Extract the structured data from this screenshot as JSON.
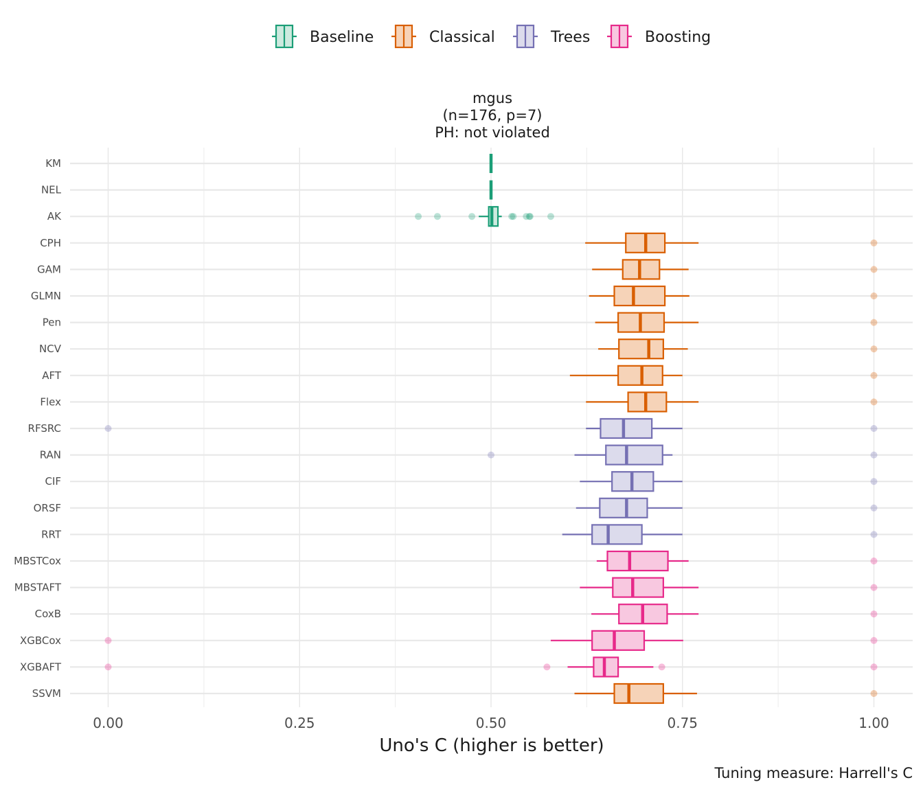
{
  "chart_data": {
    "type": "boxplot",
    "title_lines": [
      "mgus",
      "(n=176, p=7)",
      "PH: not violated"
    ],
    "xlabel": "Uno's C (higher is better)",
    "caption": "Tuning measure: Harrell's C",
    "xlim": [
      -0.025,
      1.025
    ],
    "xticks": [
      "0.00",
      "0.25",
      "0.50",
      "0.75",
      "1.00"
    ],
    "xtick_values": [
      0,
      0.25,
      0.5,
      0.75,
      1.0
    ],
    "grid": true,
    "legend_position": "top",
    "groups": [
      {
        "name": "Baseline",
        "color": "#1b9e77",
        "fill": "#cdeadf"
      },
      {
        "name": "Classical",
        "color": "#d95f02",
        "fill": "#f6d3b8"
      },
      {
        "name": "Trees",
        "color": "#7570b3",
        "fill": "#dcdbec"
      },
      {
        "name": "Boosting",
        "color": "#e7298a",
        "fill": "#f8c8e0"
      }
    ],
    "models": [
      {
        "name": "KM",
        "group": "Baseline",
        "q1": 0.5,
        "median": 0.5,
        "q3": 0.5,
        "wlo": 0.5,
        "whi": 0.5,
        "outliers": []
      },
      {
        "name": "NEL",
        "group": "Baseline",
        "q1": 0.5,
        "median": 0.5,
        "q3": 0.5,
        "wlo": 0.5,
        "whi": 0.5,
        "outliers": []
      },
      {
        "name": "AK",
        "group": "Baseline",
        "q1": 0.497,
        "median": 0.501,
        "q3": 0.509,
        "wlo": 0.484,
        "whi": 0.514,
        "outliers": [
          0.405,
          0.43,
          0.475,
          0.527,
          0.529,
          0.546,
          0.55,
          0.551,
          0.578
        ]
      },
      {
        "name": "CPH",
        "group": "Classical",
        "q1": 0.676,
        "median": 0.702,
        "q3": 0.727,
        "wlo": 0.623,
        "whi": 0.771,
        "outliers": [
          1.0
        ]
      },
      {
        "name": "GAM",
        "group": "Classical",
        "q1": 0.672,
        "median": 0.694,
        "q3": 0.72,
        "wlo": 0.632,
        "whi": 0.758,
        "outliers": [
          1.0
        ]
      },
      {
        "name": "GLMN",
        "group": "Classical",
        "q1": 0.661,
        "median": 0.686,
        "q3": 0.727,
        "wlo": 0.628,
        "whi": 0.759,
        "outliers": [
          1.0
        ]
      },
      {
        "name": "Pen",
        "group": "Classical",
        "q1": 0.666,
        "median": 0.695,
        "q3": 0.726,
        "wlo": 0.636,
        "whi": 0.771,
        "outliers": [
          1.0
        ]
      },
      {
        "name": "NCV",
        "group": "Classical",
        "q1": 0.667,
        "median": 0.706,
        "q3": 0.725,
        "wlo": 0.64,
        "whi": 0.757,
        "outliers": [
          1.0
        ]
      },
      {
        "name": "AFT",
        "group": "Classical",
        "q1": 0.666,
        "median": 0.697,
        "q3": 0.724,
        "wlo": 0.603,
        "whi": 0.75,
        "outliers": [
          1.0
        ]
      },
      {
        "name": "Flex",
        "group": "Classical",
        "q1": 0.679,
        "median": 0.702,
        "q3": 0.729,
        "wlo": 0.624,
        "whi": 0.771,
        "outliers": [
          1.0
        ]
      },
      {
        "name": "RFSRC",
        "group": "Trees",
        "q1": 0.643,
        "median": 0.673,
        "q3": 0.71,
        "wlo": 0.624,
        "whi": 0.75,
        "outliers": [
          0.0,
          1.0
        ]
      },
      {
        "name": "RAN",
        "group": "Trees",
        "q1": 0.65,
        "median": 0.677,
        "q3": 0.724,
        "wlo": 0.609,
        "whi": 0.737,
        "outliers": [
          0.5,
          1.0
        ]
      },
      {
        "name": "CIF",
        "group": "Trees",
        "q1": 0.658,
        "median": 0.684,
        "q3": 0.712,
        "wlo": 0.616,
        "whi": 0.75,
        "outliers": [
          1.0
        ]
      },
      {
        "name": "ORSF",
        "group": "Trees",
        "q1": 0.642,
        "median": 0.677,
        "q3": 0.704,
        "wlo": 0.611,
        "whi": 0.75,
        "outliers": [
          1.0
        ]
      },
      {
        "name": "RRT",
        "group": "Trees",
        "q1": 0.632,
        "median": 0.653,
        "q3": 0.697,
        "wlo": 0.593,
        "whi": 0.75,
        "outliers": [
          1.0
        ]
      },
      {
        "name": "MBSTCox",
        "group": "Boosting",
        "q1": 0.652,
        "median": 0.681,
        "q3": 0.731,
        "wlo": 0.638,
        "whi": 0.758,
        "outliers": [
          1.0
        ]
      },
      {
        "name": "MBSTAFT",
        "group": "Boosting",
        "q1": 0.659,
        "median": 0.685,
        "q3": 0.725,
        "wlo": 0.616,
        "whi": 0.771,
        "outliers": [
          1.0
        ]
      },
      {
        "name": "CoxB",
        "group": "Boosting",
        "q1": 0.667,
        "median": 0.698,
        "q3": 0.73,
        "wlo": 0.631,
        "whi": 0.771,
        "outliers": [
          1.0
        ]
      },
      {
        "name": "XGBCox",
        "group": "Boosting",
        "q1": 0.632,
        "median": 0.661,
        "q3": 0.7,
        "wlo": 0.578,
        "whi": 0.751,
        "outliers": [
          0.0,
          1.0
        ]
      },
      {
        "name": "XGBAFT",
        "group": "Boosting",
        "q1": 0.634,
        "median": 0.648,
        "q3": 0.666,
        "wlo": 0.6,
        "whi": 0.712,
        "outliers": [
          0.0,
          0.573,
          0.723,
          1.0
        ]
      },
      {
        "name": "SSVM",
        "group": "Classical",
        "q1": 0.661,
        "median": 0.68,
        "q3": 0.725,
        "wlo": 0.609,
        "whi": 0.769,
        "outliers": [
          1.0
        ]
      }
    ]
  }
}
